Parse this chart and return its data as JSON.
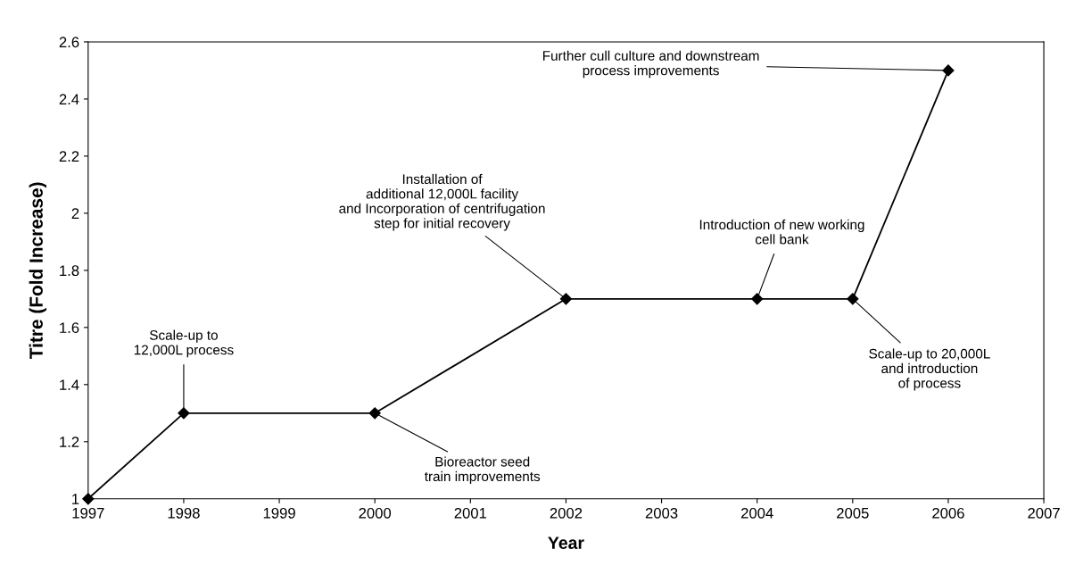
{
  "chart_data": {
    "type": "line",
    "xlabel": "Year",
    "ylabel": "Titre (Fold Increase)",
    "x": [
      1997,
      1998,
      2000,
      2002,
      2004,
      2005,
      2006
    ],
    "series": [
      {
        "color": "#000000",
        "values": [
          1,
          1.3,
          1.3,
          1.7,
          1.7,
          1.7,
          2.5
        ]
      }
    ],
    "xlim": [
      1997,
      2007
    ],
    "xticks": [
      1997,
      1998,
      1999,
      2000,
      2001,
      2002,
      2003,
      2004,
      2005,
      2006,
      2007
    ],
    "ylim": [
      1,
      2.6
    ],
    "yticks": [
      1,
      1.2,
      1.4,
      1.6,
      1.8,
      2,
      2.2,
      2.4,
      2.6
    ],
    "marker": "diamond",
    "line_style": "solid",
    "grid": false,
    "legend": false,
    "annotations": [
      {
        "text": "Scale-up to\n12,000L process",
        "x": 1998,
        "y": 1.3
      },
      {
        "text": "Bioreactor seed\ntrain improvements",
        "x": 2000,
        "y": 1.3
      },
      {
        "text": "Installation of\nadditional 12,000L facility\nand Incorporation of centrifugation\nstep for initial recovery",
        "x": 2002,
        "y": 1.7
      },
      {
        "text": "Introduction of new working\ncell bank",
        "x": 2004,
        "y": 1.7
      },
      {
        "text": "Scale-up to 20,000L\nand introduction\nof process",
        "x": 2005,
        "y": 1.7
      },
      {
        "text": "Further cull culture and downstream\nprocess improvements",
        "x": 2006,
        "y": 2.5
      }
    ]
  }
}
